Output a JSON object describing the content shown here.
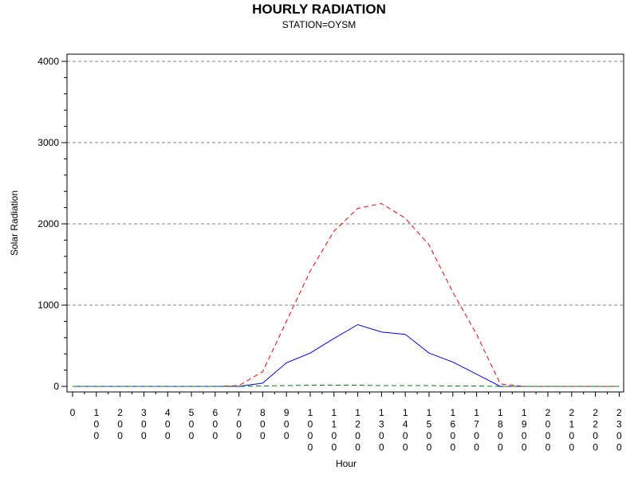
{
  "chart_data": {
    "type": "line",
    "title": "HOURLY RADIATION",
    "subtitle": "STATION=OYSM",
    "xlabel": "Hour",
    "ylabel": "Solar Radiation",
    "ylim": [
      0,
      4000
    ],
    "yticks": [
      0,
      1000,
      2000,
      3000,
      4000
    ],
    "grid": "horizontal dashed at major ticks",
    "legend": "none",
    "x": [
      0,
      100,
      200,
      300,
      400,
      500,
      600,
      700,
      800,
      900,
      1000,
      1100,
      1200,
      1300,
      1400,
      1500,
      1600,
      1700,
      1800,
      1900,
      2000,
      2100,
      2200,
      2300
    ],
    "xtick_labels": [
      "0",
      "100",
      "200",
      "300",
      "400",
      "500",
      "600",
      "700",
      "800",
      "900",
      "1000",
      "1100",
      "1200",
      "1300",
      "1400",
      "1500",
      "1600",
      "1700",
      "1800",
      "1900",
      "2000",
      "2100",
      "2200",
      "2300"
    ],
    "series": [
      {
        "color": "#0000ff",
        "style": "solid",
        "values": [
          0,
          0,
          0,
          0,
          0,
          0,
          0,
          0,
          40,
          290,
          410,
          590,
          760,
          670,
          640,
          410,
          300,
          150,
          0,
          0,
          0,
          0,
          0,
          0
        ]
      },
      {
        "color": "#ff0000",
        "style": "dashed",
        "values": [
          0,
          0,
          0,
          0,
          0,
          0,
          0,
          10,
          180,
          800,
          1420,
          1910,
          2190,
          2250,
          2070,
          1740,
          1160,
          640,
          30,
          0,
          0,
          0,
          0,
          0
        ]
      },
      {
        "color": "#008000",
        "style": "dashed",
        "values": [
          0,
          0,
          0,
          0,
          0,
          0,
          0,
          0,
          5,
          10,
          15,
          15,
          15,
          10,
          10,
          10,
          5,
          5,
          0,
          0,
          0,
          0,
          0,
          0
        ]
      }
    ]
  }
}
